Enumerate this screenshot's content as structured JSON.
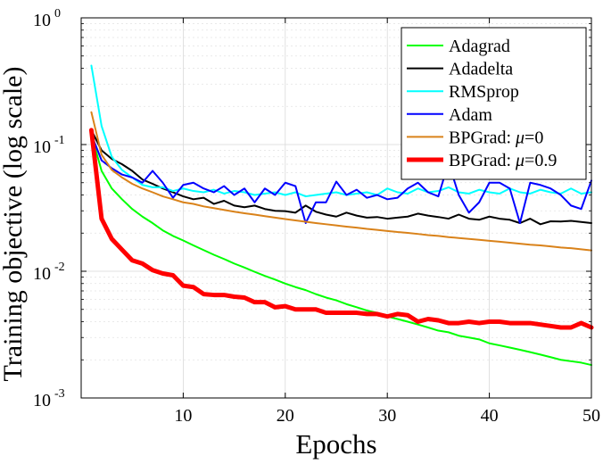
{
  "chart_data": {
    "type": "line",
    "title": "",
    "xlabel": "Epochs",
    "ylabel": "Training objective (log scale)",
    "x_scale": "linear",
    "y_scale": "log",
    "xlim": [
      0,
      50
    ],
    "ylim": [
      0.001,
      1
    ],
    "x_ticks": [
      10,
      20,
      30,
      40,
      50
    ],
    "x_tick_labels": [
      "10",
      "20",
      "30",
      "40",
      "50"
    ],
    "y_ticks": [
      {
        "value": 0.001,
        "base": "10",
        "exp": "-3"
      },
      {
        "value": 0.01,
        "base": "10",
        "exp": "-2"
      },
      {
        "value": 0.1,
        "base": "10",
        "exp": "-1"
      },
      {
        "value": 1,
        "base": "10",
        "exp": "0"
      }
    ],
    "grid": true,
    "minor_grid": true,
    "legend_position": "top-right",
    "x": [
      1,
      2,
      3,
      4,
      5,
      6,
      7,
      8,
      9,
      10,
      11,
      12,
      13,
      14,
      15,
      16,
      17,
      18,
      19,
      20,
      21,
      22,
      23,
      24,
      25,
      26,
      27,
      28,
      29,
      30,
      31,
      32,
      33,
      34,
      35,
      36,
      37,
      38,
      39,
      40,
      41,
      42,
      43,
      44,
      45,
      46,
      47,
      48,
      49,
      50
    ],
    "series": [
      {
        "name": "Adagrad",
        "legend_parts": [
          {
            "text": "Adagrad",
            "italic": false
          }
        ],
        "color": "#00ff00",
        "width": 2,
        "values": [
          0.12,
          0.062,
          0.045,
          0.037,
          0.031,
          0.027,
          0.024,
          0.021,
          0.019,
          0.0175,
          0.016,
          0.0147,
          0.0135,
          0.0125,
          0.0115,
          0.0107,
          0.0099,
          0.0092,
          0.0086,
          0.008,
          0.0075,
          0.0071,
          0.0066,
          0.0062,
          0.0059,
          0.0055,
          0.0052,
          0.0049,
          0.0047,
          0.0044,
          0.0042,
          0.004,
          0.0038,
          0.0036,
          0.0034,
          0.0033,
          0.0031,
          0.003,
          0.0029,
          0.0027,
          0.0026,
          0.0025,
          0.0024,
          0.0023,
          0.0022,
          0.0021,
          0.002,
          0.00195,
          0.0019,
          0.00182
        ]
      },
      {
        "name": "Adadelta",
        "legend_parts": [
          {
            "text": "Adadelta",
            "italic": false
          }
        ],
        "color": "#000000",
        "width": 2,
        "values": [
          0.13,
          0.09,
          0.077,
          0.07,
          0.062,
          0.053,
          0.049,
          0.045,
          0.042,
          0.039,
          0.037,
          0.038,
          0.034,
          0.036,
          0.033,
          0.032,
          0.033,
          0.031,
          0.03,
          0.0298,
          0.029,
          0.033,
          0.0295,
          0.028,
          0.027,
          0.029,
          0.0275,
          0.0265,
          0.0268,
          0.026,
          0.0265,
          0.027,
          0.0285,
          0.0275,
          0.0268,
          0.026,
          0.028,
          0.026,
          0.0255,
          0.027,
          0.026,
          0.0255,
          0.024,
          0.026,
          0.0235,
          0.0248,
          0.0247,
          0.025,
          0.0245,
          0.024
        ]
      },
      {
        "name": "RMSprop",
        "legend_parts": [
          {
            "text": "RMSprop",
            "italic": false
          }
        ],
        "color": "#00ffff",
        "width": 2,
        "values": [
          0.42,
          0.14,
          0.08,
          0.063,
          0.055,
          0.048,
          0.046,
          0.046,
          0.043,
          0.045,
          0.043,
          0.042,
          0.044,
          0.041,
          0.043,
          0.042,
          0.04,
          0.041,
          0.042,
          0.04,
          0.042,
          0.039,
          0.04,
          0.041,
          0.042,
          0.04,
          0.041,
          0.042,
          0.04,
          0.045,
          0.042,
          0.041,
          0.045,
          0.042,
          0.043,
          0.046,
          0.042,
          0.041,
          0.044,
          0.042,
          0.041,
          0.045,
          0.042,
          0.041,
          0.044,
          0.042,
          0.041,
          0.045,
          0.041,
          0.042
        ]
      },
      {
        "name": "Adam",
        "legend_parts": [
          {
            "text": "Adam",
            "italic": false
          }
        ],
        "color": "#0000ff",
        "width": 2,
        "values": [
          0.12,
          0.075,
          0.065,
          0.058,
          0.055,
          0.05,
          0.062,
          0.05,
          0.038,
          0.048,
          0.05,
          0.045,
          0.042,
          0.047,
          0.04,
          0.045,
          0.035,
          0.045,
          0.04,
          0.05,
          0.047,
          0.024,
          0.035,
          0.035,
          0.051,
          0.04,
          0.044,
          0.038,
          0.04,
          0.037,
          0.038,
          0.045,
          0.05,
          0.042,
          0.039,
          0.072,
          0.04,
          0.029,
          0.035,
          0.05,
          0.05,
          0.045,
          0.024,
          0.05,
          0.048,
          0.045,
          0.04,
          0.033,
          0.031,
          0.052
        ]
      },
      {
        "name": "BPGrad: μ=0",
        "legend_parts": [
          {
            "text": "BPGrad:  ",
            "italic": false
          },
          {
            "text": "μ",
            "italic": true
          },
          {
            "text": "=0",
            "italic": false
          }
        ],
        "color": "#d9821a",
        "width": 2,
        "values": [
          0.18,
          0.083,
          0.063,
          0.055,
          0.049,
          0.045,
          0.042,
          0.039,
          0.037,
          0.035,
          0.034,
          0.0325,
          0.0315,
          0.0305,
          0.0295,
          0.0287,
          0.028,
          0.0272,
          0.0265,
          0.0258,
          0.0252,
          0.0246,
          0.024,
          0.0235,
          0.023,
          0.0225,
          0.0221,
          0.0216,
          0.0212,
          0.0208,
          0.0204,
          0.0201,
          0.0197,
          0.0193,
          0.019,
          0.0186,
          0.0183,
          0.018,
          0.0177,
          0.0174,
          0.0171,
          0.0168,
          0.0165,
          0.0162,
          0.016,
          0.0157,
          0.0154,
          0.0152,
          0.0149,
          0.0146
        ]
      },
      {
        "name": "BPGrad: μ=0.9",
        "legend_parts": [
          {
            "text": "BPGrad:  ",
            "italic": false
          },
          {
            "text": "μ",
            "italic": true
          },
          {
            "text": "=0.9",
            "italic": false
          }
        ],
        "color": "#ff0000",
        "width": 5,
        "values": [
          0.13,
          0.026,
          0.018,
          0.0148,
          0.0122,
          0.0115,
          0.0102,
          0.0096,
          0.0093,
          0.0077,
          0.0075,
          0.0066,
          0.0065,
          0.0065,
          0.0063,
          0.0062,
          0.0057,
          0.0057,
          0.0052,
          0.0053,
          0.005,
          0.005,
          0.005,
          0.0047,
          0.0047,
          0.0047,
          0.0047,
          0.0046,
          0.0046,
          0.0044,
          0.0046,
          0.0045,
          0.004,
          0.0042,
          0.0041,
          0.0039,
          0.0039,
          0.004,
          0.0039,
          0.004,
          0.004,
          0.0039,
          0.0039,
          0.0039,
          0.0038,
          0.0037,
          0.0036,
          0.0036,
          0.0039,
          0.0036
        ]
      }
    ]
  }
}
